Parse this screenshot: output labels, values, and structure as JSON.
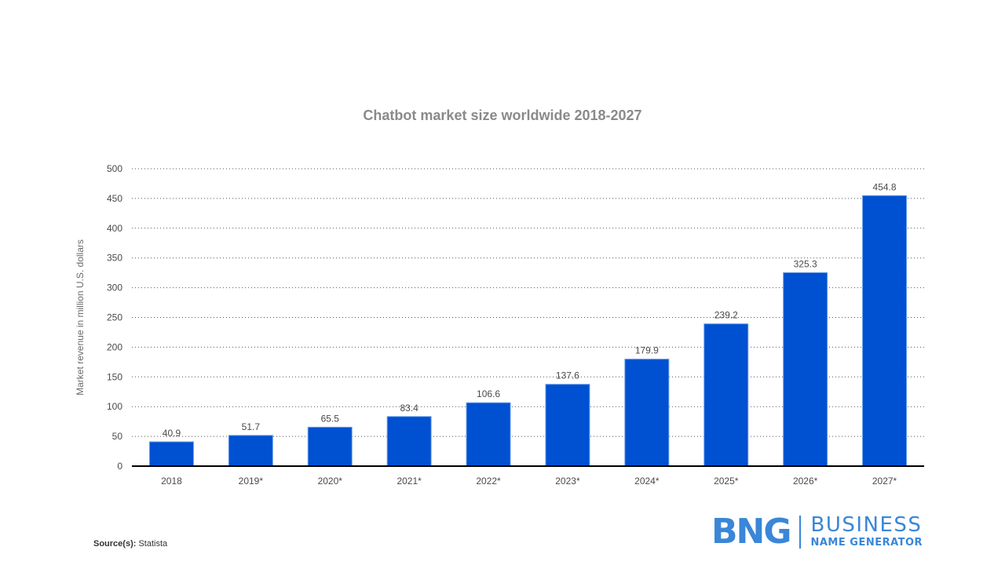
{
  "chart_data": {
    "type": "bar",
    "title": "Chatbot market size worldwide 2018-2027",
    "xlabel": "",
    "ylabel": "Market revenue in million U.S. dollars",
    "categories": [
      "2018",
      "2019*",
      "2020*",
      "2021*",
      "2022*",
      "2023*",
      "2024*",
      "2025*",
      "2026*",
      "2027*"
    ],
    "values": [
      40.9,
      51.7,
      65.5,
      83.4,
      106.6,
      137.6,
      179.9,
      239.2,
      325.3,
      454.8
    ],
    "data_labels": [
      "40.9",
      "51.7",
      "65.5",
      "83.4",
      "106.6",
      "137.6",
      "179.9",
      "239.2",
      "325.3",
      "454.8"
    ],
    "yticks": [
      0,
      50,
      100,
      150,
      200,
      250,
      300,
      350,
      400,
      450,
      500
    ],
    "ylim": [
      0,
      500
    ],
    "grid": true,
    "grid_style": "dotted",
    "legend": "none",
    "bar_color": "#0050d2"
  },
  "source": {
    "label": "Source(s):",
    "value": "Statista"
  },
  "logo": {
    "mark": "BNG",
    "line1": "BUSINESS",
    "line2": "NAME GENERATOR",
    "color": "#3a86d8"
  }
}
